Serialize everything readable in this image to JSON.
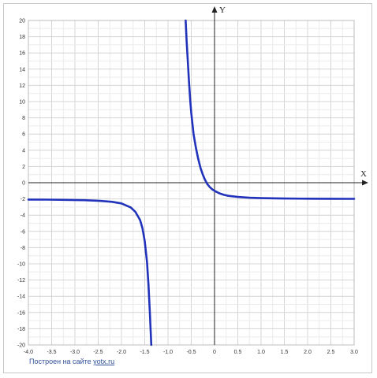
{
  "chart_data": {
    "type": "line",
    "title": "",
    "xlabel": "X",
    "ylabel": "Y",
    "xlim": [
      -4.0,
      3.0
    ],
    "ylim": [
      -20,
      20
    ],
    "x_ticks": [
      "-4.0",
      "-3.5",
      "-3.0",
      "-2.5",
      "-2.0",
      "-1.5",
      "-1.0",
      "-0.5",
      "0",
      "0.5",
      "1.0",
      "1.5",
      "2.0",
      "2.5",
      "3.0"
    ],
    "y_ticks": [
      "20",
      "18",
      "16",
      "14",
      "12",
      "10",
      "8",
      "6",
      "4",
      "2",
      "0",
      "-2",
      "-4",
      "-6",
      "-8",
      "-10",
      "-12",
      "-14",
      "-16",
      "-18",
      "-20"
    ],
    "grid": true,
    "series": [
      {
        "name": "",
        "color": "#2233bb",
        "segments": [
          [
            [
              -4.0,
              -2.08
            ],
            [
              -3.6,
              -2.09
            ],
            [
              -3.2,
              -2.12
            ],
            [
              -2.8,
              -2.16
            ],
            [
              -2.5,
              -2.22
            ],
            [
              -2.2,
              -2.36
            ],
            [
              -2.0,
              -2.55
            ],
            [
              -1.8,
              -3.05
            ],
            [
              -1.7,
              -3.6
            ],
            [
              -1.6,
              -4.6
            ],
            [
              -1.55,
              -5.6
            ],
            [
              -1.5,
              -7.2
            ],
            [
              -1.45,
              -9.8
            ],
            [
              -1.42,
              -12.5
            ],
            [
              -1.39,
              -16.0
            ],
            [
              -1.36,
              -20.0
            ]
          ],
          [
            [
              -0.62,
              20.0
            ],
            [
              -0.6,
              17.5
            ],
            [
              -0.57,
              14.5
            ],
            [
              -0.55,
              12.5
            ],
            [
              -0.52,
              10.0
            ],
            [
              -0.5,
              8.6
            ],
            [
              -0.45,
              6.0
            ],
            [
              -0.4,
              4.3
            ],
            [
              -0.35,
              2.9
            ],
            [
              -0.3,
              1.8
            ],
            [
              -0.25,
              0.95
            ],
            [
              -0.2,
              0.3
            ],
            [
              -0.15,
              -0.2
            ],
            [
              -0.1,
              -0.55
            ],
            [
              -0.05,
              -0.82
            ],
            [
              0.0,
              -1.0
            ],
            [
              0.1,
              -1.3
            ],
            [
              0.2,
              -1.5
            ],
            [
              0.3,
              -1.62
            ],
            [
              0.5,
              -1.76
            ],
            [
              0.75,
              -1.85
            ],
            [
              1.0,
              -1.9
            ],
            [
              1.5,
              -1.95
            ],
            [
              2.0,
              -1.97
            ],
            [
              2.5,
              -1.98
            ],
            [
              3.0,
              -1.99
            ]
          ]
        ]
      }
    ]
  },
  "footer": {
    "credit_prefix": "Построен на сайте ",
    "credit_link": "yotx.ru"
  }
}
